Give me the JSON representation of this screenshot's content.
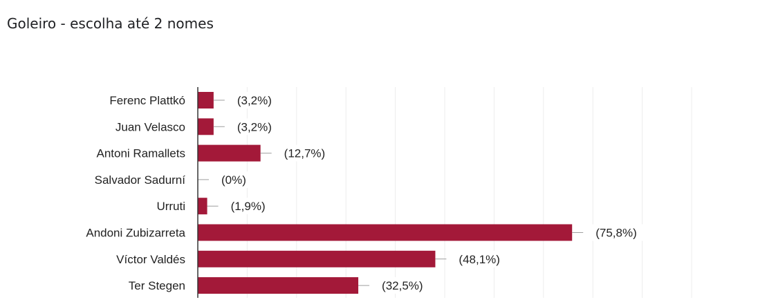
{
  "title": "Goleiro - escolha até 2 nomes",
  "chart_data": {
    "type": "bar",
    "orientation": "horizontal",
    "title": "Goleiro - escolha até 2 nomes",
    "categories": [
      "Ferenc Plattkó",
      "Juan Velasco",
      "Antoni Ramallets",
      "Salvador Sadurní",
      "Urruti",
      "Andoni Zubizarreta",
      "Víctor Valdés",
      "Ter Stegen"
    ],
    "values": [
      3.2,
      3.2,
      12.7,
      0,
      1.9,
      75.8,
      48.1,
      32.5
    ],
    "value_labels": [
      "(3,2%)",
      "(3,2%)",
      "(12,7%)",
      "(0%)",
      "(1,9%)",
      "(75,8%)",
      "(48,1%)",
      "(32,5%)"
    ],
    "xlim": [
      0,
      100
    ],
    "grid": true,
    "legend": "none",
    "colors": {
      "bar": "#a31939",
      "grid": "#ececec",
      "axis": "#333333",
      "connector": "#9e9e9e"
    }
  }
}
